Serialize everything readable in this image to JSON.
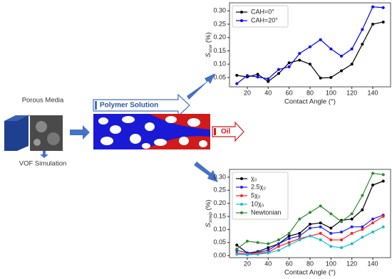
{
  "labels": {
    "porous_media": "Porous Media",
    "vof": "VOF Simulation",
    "polymer": "Polymer Solution",
    "oil": "Oil"
  },
  "chart_data": [
    {
      "type": "line",
      "x": [
        10,
        20,
        30,
        40,
        50,
        60,
        70,
        80,
        90,
        100,
        110,
        120,
        130,
        140,
        150
      ],
      "series": [
        {
          "name": "CAH=0°",
          "color": "#000000",
          "values": [
            0.058,
            0.052,
            0.062,
            0.035,
            0.065,
            0.105,
            0.115,
            0.1,
            0.048,
            0.05,
            0.075,
            0.1,
            0.175,
            0.25,
            0.258
          ]
        },
        {
          "name": "CAH=20°",
          "color": "#0000ff",
          "values": [
            0.027,
            0.057,
            0.052,
            0.045,
            0.08,
            0.09,
            0.14,
            0.165,
            0.192,
            0.157,
            0.13,
            0.157,
            0.23,
            0.315,
            0.312
          ]
        }
      ],
      "xlim": [
        3,
        157
      ],
      "ylim": [
        0.015,
        0.33
      ],
      "xticks": [
        20,
        40,
        60,
        80,
        100,
        120,
        140
      ],
      "yticks": [
        0.05,
        {
          "value": 0.1,
          "label": "0.10"
        },
        0.15,
        {
          "value": 0.2,
          "label": "0.20"
        },
        0.25,
        {
          "value": 0.3,
          "label": "0.30"
        }
      ],
      "x_label": "Contact Angle (°)",
      "y_label": "S",
      "y_label_sub": "sow",
      "y_label_unit": " (%)",
      "legend": "upper left"
    },
    {
      "type": "line",
      "x": [
        10,
        20,
        30,
        40,
        50,
        60,
        70,
        80,
        90,
        100,
        110,
        120,
        130,
        140,
        150
      ],
      "series": [
        {
          "name": "χ₀",
          "color": "#000000",
          "values": [
            0.04,
            0.01,
            0.015,
            0.03,
            0.045,
            0.075,
            0.085,
            0.12,
            0.125,
            0.105,
            0.135,
            0.14,
            0.175,
            0.27,
            0.285
          ]
        },
        {
          "name": "2.5χ₀",
          "color": "#1f1fff",
          "values": [
            0.02,
            0.01,
            0.012,
            0.02,
            0.045,
            0.065,
            0.075,
            0.105,
            0.11,
            0.085,
            0.09,
            0.11,
            0.11,
            0.14,
            0.155
          ]
        },
        {
          "name": "5χ₀",
          "color": "#ff2020",
          "values": [
            0.01,
            0.005,
            0.01,
            0.012,
            0.035,
            0.05,
            0.065,
            0.075,
            0.085,
            0.06,
            0.06,
            0.085,
            0.1,
            0.125,
            0.15
          ]
        },
        {
          "name": "10χ₀",
          "color": "#17becf",
          "values": [
            0.005,
            0.003,
            0.005,
            0.01,
            0.02,
            0.04,
            0.06,
            0.075,
            0.06,
            0.035,
            0.03,
            0.045,
            0.07,
            0.09,
            0.11
          ]
        },
        {
          "name": "Newtonian",
          "color": "#2e8b2e",
          "values": [
            0.025,
            0.055,
            0.05,
            0.045,
            0.06,
            0.085,
            0.14,
            0.165,
            0.19,
            0.16,
            0.13,
            0.16,
            0.23,
            0.315,
            0.31
          ]
        }
      ],
      "xlim": [
        3,
        157
      ],
      "ylim": [
        -0.008,
        0.33
      ],
      "xticks": [
        20,
        40,
        60,
        80,
        100,
        120,
        140
      ],
      "yticks": [
        {
          "value": 0,
          "label": "0.00"
        },
        0.05,
        {
          "value": 0.1,
          "label": "0.10"
        },
        0.15,
        {
          "value": 0.2,
          "label": "0.20"
        },
        0.25,
        {
          "value": 0.3,
          "label": "0.30"
        }
      ],
      "x_label": "Contact Angle (°)",
      "y_label": "S",
      "y_label_sub": "sowp",
      "y_label_unit": " (%)",
      "legend": "upper left"
    }
  ]
}
